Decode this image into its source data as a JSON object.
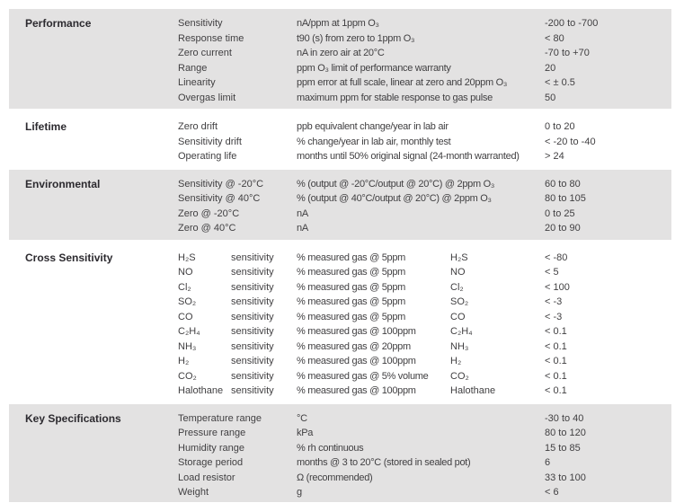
{
  "colors": {
    "page_bg": "#ffffff",
    "section_shaded_bg": "#e3e2e2",
    "body_text": "#403f41",
    "title_text": "#2c2a2f"
  },
  "sections": [
    {
      "title": "Performance",
      "shaded": true,
      "rows": [
        {
          "param": "Sensitivity",
          "desc": "nA/ppm at 1ppm O₃",
          "value": "-200 to -700"
        },
        {
          "param": "Response time",
          "desc": "t90 (s) from zero to 1ppm O₃",
          "value": "< 80"
        },
        {
          "param": "Zero current",
          "desc": "nA in zero air at 20°C",
          "value": "-70 to +70"
        },
        {
          "param": "Range",
          "desc": "ppm O₃ limit of performance warranty",
          "value": "20"
        },
        {
          "param": "Linearity",
          "desc": "ppm error at full scale, linear at zero and 20ppm O₃",
          "value": "< ± 0.5"
        },
        {
          "param": "Overgas limit",
          "desc": "maximum ppm for stable response to gas pulse",
          "value": "50"
        }
      ]
    },
    {
      "title": "Lifetime",
      "shaded": false,
      "rows": [
        {
          "param": "Zero drift",
          "desc": "ppb equivalent change/year in lab air",
          "value": "0 to 20"
        },
        {
          "param": "Sensitivity drift",
          "desc": "% change/year in lab air, monthly test",
          "value": "< -20 to -40"
        },
        {
          "param": "Operating life",
          "desc": "months until 50% original signal (24-month warranted)",
          "value": "> 24"
        }
      ]
    },
    {
      "title": "Environmental",
      "shaded": true,
      "rows": [
        {
          "param": "Sensitivity @ -20°C",
          "desc": "% (output @ -20°C/output @ 20°C) @ 2ppm O₃",
          "value": "60 to 80"
        },
        {
          "param": "Sensitivity @ 40°C",
          "desc": "% (output @ 40°C/output @ 20°C) @ 2ppm O₃",
          "value": "80 to 105"
        },
        {
          "param": "Zero @ -20°C",
          "desc": "nA",
          "value": "0 to 25"
        },
        {
          "param": "Zero @ 40°C",
          "desc": "nA",
          "value": "20 to 90"
        }
      ]
    },
    {
      "title": "Cross Sensitivity",
      "shaded": false,
      "cross": true,
      "rows": [
        {
          "gas": "H₂S",
          "sub": "sensitivity",
          "desc": "% measured gas @ 5ppm",
          "gas2": "H₂S",
          "value": "< -80"
        },
        {
          "gas": "NO",
          "sub": "sensitivity",
          "desc": "% measured gas @ 5ppm",
          "gas2": "NO",
          "value": "< 5"
        },
        {
          "gas": "Cl₂",
          "sub": "sensitivity",
          "desc": "% measured gas @ 5ppm",
          "gas2": "Cl₂",
          "value": "< 100"
        },
        {
          "gas": "SO₂",
          "sub": "sensitivity",
          "desc": "% measured gas @ 5ppm",
          "gas2": "SO₂",
          "value": "< -3"
        },
        {
          "gas": "CO",
          "sub": "sensitivity",
          "desc": "% measured gas @ 5ppm",
          "gas2": "CO",
          "value": "< -3"
        },
        {
          "gas": "C₂H₄",
          "sub": "sensitivity",
          "desc": "% measured gas @ 100ppm",
          "gas2": "C₂H₄",
          "value": "< 0.1"
        },
        {
          "gas": "NH₃",
          "sub": "sensitivity",
          "desc": "% measured gas @ 20ppm",
          "gas2": "NH₃",
          "value": "< 0.1"
        },
        {
          "gas": "H₂",
          "sub": "sensitivity",
          "desc": "% measured gas @ 100ppm",
          "gas2": "H₂",
          "value": "< 0.1"
        },
        {
          "gas": "CO₂",
          "sub": "sensitivity",
          "desc": "% measured gas @ 5% volume",
          "gas2": "CO₂",
          "value": "< 0.1"
        },
        {
          "gas": "Halothane",
          "sub": "sensitivity",
          "desc": "% measured gas @ 100ppm",
          "gas2": "Halothane",
          "value": "< 0.1"
        }
      ]
    },
    {
      "title": "Key Specifications",
      "shaded": true,
      "rows": [
        {
          "param": "Temperature range",
          "desc": "°C",
          "value": "-30 to 40"
        },
        {
          "param": "Pressure range",
          "desc": "kPa",
          "value": "80 to 120"
        },
        {
          "param": "Humidity range",
          "desc": "% rh continuous",
          "value": "15 to 85"
        },
        {
          "param": "Storage period",
          "desc": "months @ 3 to 20°C (stored in sealed pot)",
          "value": "6"
        },
        {
          "param": "Load resistor",
          "desc": "Ω (recommended)",
          "value": "33 to 100"
        },
        {
          "param": "Weight",
          "desc": "g",
          "value": "< 6"
        }
      ]
    }
  ]
}
